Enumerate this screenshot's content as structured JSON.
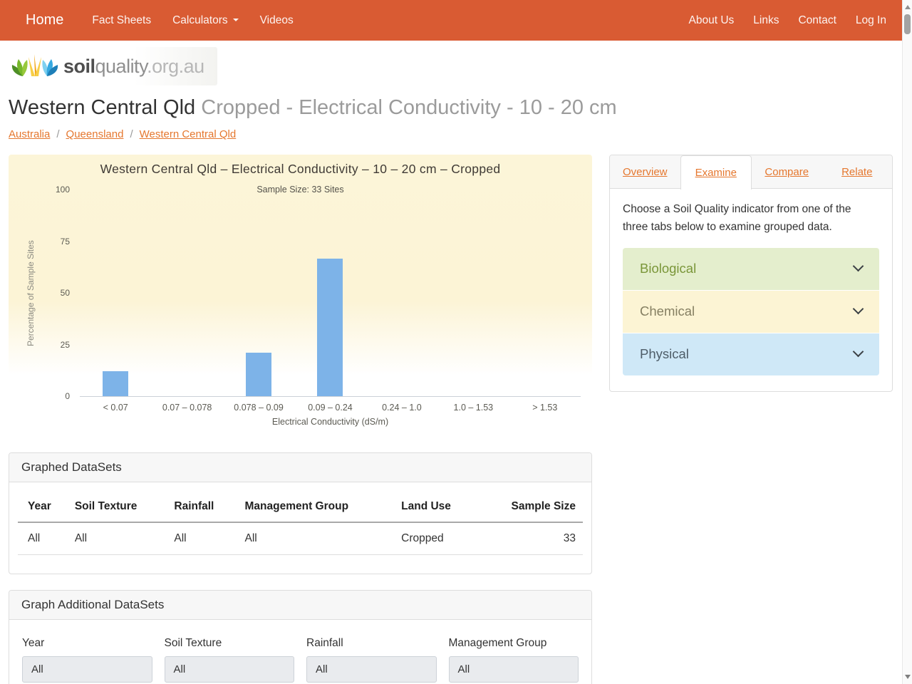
{
  "navbar": {
    "brand": "Home",
    "left": [
      {
        "label": "Fact Sheets",
        "caret": false
      },
      {
        "label": "Calculators",
        "caret": true
      },
      {
        "label": "Videos",
        "caret": false
      }
    ],
    "right": [
      {
        "label": "About Us"
      },
      {
        "label": "Links"
      },
      {
        "label": "Contact"
      },
      {
        "label": "Log In"
      }
    ]
  },
  "logo": {
    "part_bold": "soil",
    "part_light": "quality",
    "part_suffix": ".org.au"
  },
  "page": {
    "title_main": "Western Central Qld",
    "title_sub": "Cropped - Electrical Conductivity - 10 - 20 cm",
    "breadcrumb": [
      "Australia",
      "Queensland",
      "Western Central Qld"
    ],
    "breadcrumb_separator": "/"
  },
  "chart_data": {
    "type": "bar",
    "title": "Western Central Qld – Electrical Conductivity – 10 – 20 cm – Cropped",
    "subtitle": "Sample Size: 33 Sites",
    "categories": [
      "< 0.07",
      "0.07 – 0.078",
      "0.078 – 0.09",
      "0.09 – 0.24",
      "0.24 – 1.0",
      "1.0 – 1.53",
      "> 1.53"
    ],
    "values": [
      12.1,
      0,
      21.2,
      66.7,
      0,
      0,
      0
    ],
    "sample_size_sites": 33,
    "xlabel": "Electrical Conductivity (dS/m)",
    "ylabel": "Percentage of Sample Sites",
    "ylim": [
      0,
      100
    ],
    "yticks": [
      0,
      25,
      50,
      75,
      100
    ],
    "grid": false,
    "legend_position": "none",
    "bar_color": "#7DB3E8",
    "background_color": "#FCF5D8"
  },
  "side_panel": {
    "tabs": [
      {
        "label": "Overview",
        "active": false
      },
      {
        "label": "Examine",
        "active": true
      },
      {
        "label": "Compare",
        "active": false
      },
      {
        "label": "Relate",
        "active": false
      }
    ],
    "description": "Choose a Soil Quality indicator from one of the three tabs below to examine grouped data.",
    "accordion": [
      {
        "label": "Biological",
        "bg": "#E4EECD",
        "color": "#7A9639"
      },
      {
        "label": "Chemical",
        "bg": "#FCF4D4",
        "color": "#857F62"
      },
      {
        "label": "Physical",
        "bg": "#CFE8F7",
        "color": "#4E5D68"
      }
    ]
  },
  "graphed_datasets": {
    "title": "Graphed DataSets",
    "columns": [
      "Year",
      "Soil Texture",
      "Rainfall",
      "Management Group",
      "Land Use",
      "Sample Size"
    ],
    "rows": [
      [
        "All",
        "All",
        "All",
        "All",
        "Cropped",
        "33"
      ]
    ]
  },
  "additional_datasets": {
    "title": "Graph Additional DataSets",
    "filters": [
      {
        "label": "Year",
        "value": "All"
      },
      {
        "label": "Soil Texture",
        "value": "All"
      },
      {
        "label": "Rainfall",
        "value": "All"
      },
      {
        "label": "Management Group",
        "value": "All"
      }
    ]
  },
  "colors": {
    "navbar_bg": "#D95B33",
    "link_orange": "#E5772E",
    "bar_blue": "#7DB3E8",
    "chart_bg": "#FCF5D8"
  }
}
